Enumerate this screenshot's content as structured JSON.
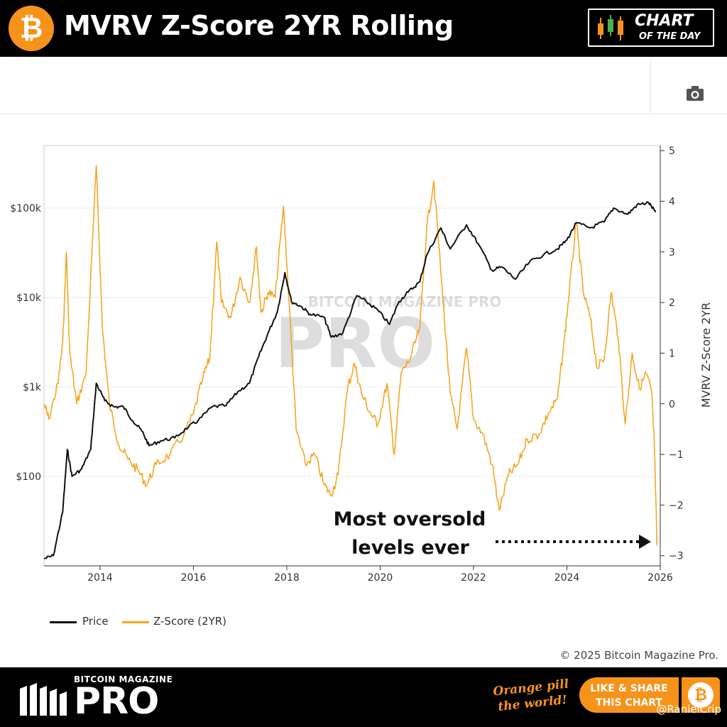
{
  "header": {
    "logo_glyph": "₿",
    "title": "MVRV Z-Score 2YR Rolling",
    "badge_line1": "CHART",
    "badge_line2": "OF THE DAY"
  },
  "toolbar": {
    "camera_icon": "camera-icon"
  },
  "footer": {
    "copyright": "© 2025 Bitcoin Magazine Pro.",
    "brand_small": "BITCOIN MAGAZINE",
    "brand_big": "PRO",
    "tagline_line1": "Orange pill",
    "tagline_line2": "the world!",
    "share_line1": "LIKE & SHARE",
    "share_line2": "THIS CHART",
    "share_glyph": "₿",
    "handle": "@RanielCrip"
  },
  "colors": {
    "price": "#111111",
    "zscore": "#f5a623",
    "brand": "#f7931a"
  },
  "chart_data": {
    "type": "line",
    "title": "MVRV Z-Score 2YR Rolling",
    "watermark": "BITCOIN MAGAZINE PRO",
    "x_ticks": [
      "2014",
      "2016",
      "2018",
      "2020",
      "2022",
      "2024",
      "2026"
    ],
    "xlim": [
      2012.8,
      2026.0
    ],
    "y_left": {
      "scale": "log",
      "ticks": [
        "$100",
        "$1k",
        "$10k",
        "$100k"
      ],
      "lim": [
        10,
        500000
      ]
    },
    "y_right": {
      "label": "MVRV Z-Score 2YR",
      "ticks": [
        "5",
        "4",
        "3",
        "2",
        "1",
        "0",
        "−1",
        "−2",
        "−3"
      ],
      "lim": [
        -3.2,
        5.1
      ]
    },
    "grid": true,
    "legend_position": "bottom-left",
    "series": [
      {
        "name": "Price",
        "axis": "left",
        "points": [
          [
            2012.8,
            12
          ],
          [
            2013.0,
            13
          ],
          [
            2013.2,
            40
          ],
          [
            2013.3,
            200
          ],
          [
            2013.4,
            100
          ],
          [
            2013.6,
            120
          ],
          [
            2013.8,
            200
          ],
          [
            2013.92,
            1100
          ],
          [
            2014.1,
            700
          ],
          [
            2014.3,
            600
          ],
          [
            2014.5,
            600
          ],
          [
            2014.7,
            420
          ],
          [
            2014.9,
            320
          ],
          [
            2015.05,
            220
          ],
          [
            2015.3,
            250
          ],
          [
            2015.6,
            270
          ],
          [
            2015.9,
            360
          ],
          [
            2016.1,
            420
          ],
          [
            2016.4,
            600
          ],
          [
            2016.7,
            620
          ],
          [
            2016.95,
            880
          ],
          [
            2017.2,
            1100
          ],
          [
            2017.4,
            2200
          ],
          [
            2017.6,
            4000
          ],
          [
            2017.8,
            7000
          ],
          [
            2017.96,
            19000
          ],
          [
            2018.1,
            9000
          ],
          [
            2018.3,
            8000
          ],
          [
            2018.5,
            6500
          ],
          [
            2018.8,
            6000
          ],
          [
            2018.95,
            3600
          ],
          [
            2019.2,
            4000
          ],
          [
            2019.5,
            10500
          ],
          [
            2019.7,
            9000
          ],
          [
            2019.95,
            7200
          ],
          [
            2020.2,
            5000
          ],
          [
            2020.4,
            9000
          ],
          [
            2020.6,
            11500
          ],
          [
            2020.85,
            15000
          ],
          [
            2021.0,
            30000
          ],
          [
            2021.3,
            60000
          ],
          [
            2021.5,
            35000
          ],
          [
            2021.85,
            65000
          ],
          [
            2022.1,
            40000
          ],
          [
            2022.4,
            20000
          ],
          [
            2022.6,
            22000
          ],
          [
            2022.9,
            16000
          ],
          [
            2023.2,
            25000
          ],
          [
            2023.5,
            30000
          ],
          [
            2023.8,
            35000
          ],
          [
            2024.0,
            44000
          ],
          [
            2024.2,
            68000
          ],
          [
            2024.5,
            60000
          ],
          [
            2024.8,
            70000
          ],
          [
            2025.0,
            100000
          ],
          [
            2025.3,
            85000
          ],
          [
            2025.5,
            108000
          ],
          [
            2025.75,
            115000
          ],
          [
            2025.9,
            90000
          ]
        ]
      },
      {
        "name": "Z-Score (2YR)",
        "axis": "right",
        "points": [
          [
            2012.8,
            0.0
          ],
          [
            2012.9,
            -0.3
          ],
          [
            2013.1,
            0.4
          ],
          [
            2013.2,
            1.2
          ],
          [
            2013.28,
            3.0
          ],
          [
            2013.35,
            1.0
          ],
          [
            2013.5,
            0.0
          ],
          [
            2013.7,
            0.6
          ],
          [
            2013.92,
            4.7
          ],
          [
            2014.05,
            1.5
          ],
          [
            2014.2,
            0.0
          ],
          [
            2014.4,
            -0.8
          ],
          [
            2014.6,
            -1.1
          ],
          [
            2014.8,
            -1.3
          ],
          [
            2015.0,
            -1.6
          ],
          [
            2015.2,
            -1.2
          ],
          [
            2015.5,
            -1.0
          ],
          [
            2015.8,
            -0.6
          ],
          [
            2016.0,
            -0.2
          ],
          [
            2016.2,
            0.5
          ],
          [
            2016.35,
            0.9
          ],
          [
            2016.5,
            3.2
          ],
          [
            2016.6,
            2.0
          ],
          [
            2016.8,
            1.7
          ],
          [
            2017.0,
            2.5
          ],
          [
            2017.2,
            2.0
          ],
          [
            2017.35,
            3.1
          ],
          [
            2017.45,
            1.8
          ],
          [
            2017.6,
            2.2
          ],
          [
            2017.75,
            2.1
          ],
          [
            2017.93,
            3.9
          ],
          [
            2018.05,
            2.0
          ],
          [
            2018.2,
            -0.5
          ],
          [
            2018.4,
            -1.2
          ],
          [
            2018.6,
            -1.0
          ],
          [
            2018.8,
            -1.6
          ],
          [
            2018.95,
            -1.8
          ],
          [
            2019.1,
            -1.4
          ],
          [
            2019.3,
            0.3
          ],
          [
            2019.45,
            0.8
          ],
          [
            2019.6,
            0.2
          ],
          [
            2019.8,
            -0.2
          ],
          [
            2019.95,
            -0.4
          ],
          [
            2020.15,
            0.4
          ],
          [
            2020.3,
            -1.0
          ],
          [
            2020.45,
            0.6
          ],
          [
            2020.65,
            0.9
          ],
          [
            2020.85,
            1.5
          ],
          [
            2021.0,
            3.5
          ],
          [
            2021.15,
            4.4
          ],
          [
            2021.35,
            2.0
          ],
          [
            2021.5,
            0.2
          ],
          [
            2021.65,
            -0.5
          ],
          [
            2021.85,
            1.1
          ],
          [
            2022.0,
            -0.3
          ],
          [
            2022.2,
            -0.6
          ],
          [
            2022.4,
            -1.2
          ],
          [
            2022.55,
            -2.1
          ],
          [
            2022.75,
            -1.4
          ],
          [
            2022.95,
            -1.2
          ],
          [
            2023.15,
            -0.7
          ],
          [
            2023.4,
            -0.6
          ],
          [
            2023.6,
            -0.2
          ],
          [
            2023.8,
            0.1
          ],
          [
            2023.95,
            1.3
          ],
          [
            2024.05,
            2.2
          ],
          [
            2024.2,
            3.6
          ],
          [
            2024.35,
            2.2
          ],
          [
            2024.5,
            1.7
          ],
          [
            2024.65,
            0.7
          ],
          [
            2024.8,
            0.9
          ],
          [
            2024.95,
            2.2
          ],
          [
            2025.1,
            1.3
          ],
          [
            2025.25,
            -0.4
          ],
          [
            2025.4,
            1.0
          ],
          [
            2025.55,
            0.3
          ],
          [
            2025.7,
            0.6
          ],
          [
            2025.82,
            0.2
          ],
          [
            2025.88,
            -1.0
          ],
          [
            2025.93,
            -2.8
          ]
        ]
      }
    ],
    "annotation": {
      "text_line1": "Most oversold",
      "text_line2": "levels ever"
    }
  }
}
